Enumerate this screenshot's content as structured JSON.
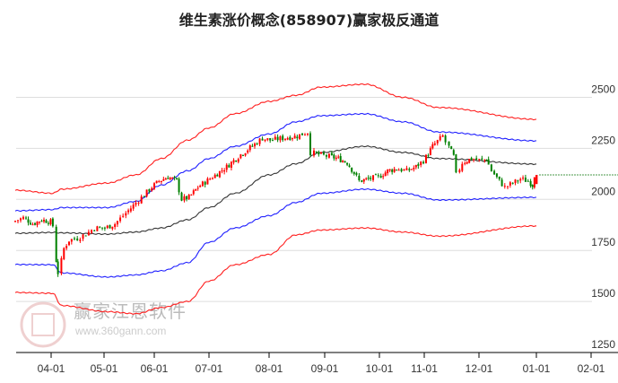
{
  "title": "维生素涨价概念(858907)赢家极反通道",
  "watermark": {
    "name": "赢家江恩软件",
    "url": "www.360gann.com"
  },
  "colors": {
    "up": "#ff0000",
    "down": "#008000",
    "outer_band": "#ff2020",
    "inner_band": "#2020ff",
    "mid_line": "#333333",
    "last_price_line": "#4a9a4a"
  },
  "chart_data": {
    "type": "candlestick",
    "title": "维生素涨价概念(858907)赢家极反通道",
    "ylim": [
      1250,
      2600
    ],
    "y_ticks": [
      1250,
      1500,
      1750,
      2000,
      2250,
      2500
    ],
    "y_axis_position": "right",
    "grid": true,
    "x_ticks": [
      "04-01",
      "05-01",
      "06-01",
      "07-01",
      "08-01",
      "09-01",
      "10-01",
      "11-01",
      "12-01",
      "01-01",
      "02-01"
    ],
    "last_price": 2120,
    "closes": [
      [
        "03-12",
        1890
      ],
      [
        "03-18",
        1910
      ],
      [
        "03-23",
        1880
      ],
      [
        "03-28",
        1900
      ],
      [
        "04-02",
        1890
      ],
      [
        "04-04",
        1870
      ],
      [
        "04-05",
        1700
      ],
      [
        "04-07",
        1640
      ],
      [
        "04-10",
        1760
      ],
      [
        "04-13",
        1800
      ],
      [
        "04-18",
        1810
      ],
      [
        "04-23",
        1830
      ],
      [
        "04-28",
        1860
      ],
      [
        "05-03",
        1860
      ],
      [
        "05-09",
        1880
      ],
      [
        "05-14",
        1920
      ],
      [
        "05-20",
        1970
      ],
      [
        "05-25",
        2010
      ],
      [
        "05-31",
        2060
      ],
      [
        "06-05",
        2090
      ],
      [
        "06-10",
        2110
      ],
      [
        "06-15",
        2090
      ],
      [
        "06-18",
        2000
      ],
      [
        "06-22",
        2010
      ],
      [
        "06-27",
        2060
      ],
      [
        "07-04",
        2110
      ],
      [
        "07-11",
        2160
      ],
      [
        "07-18",
        2220
      ],
      [
        "07-25",
        2270
      ],
      [
        "07-29",
        2300
      ],
      [
        "08-03",
        2290
      ],
      [
        "08-10",
        2300
      ],
      [
        "08-18",
        2310
      ],
      [
        "08-24",
        2330
      ],
      [
        "08-26",
        2230
      ],
      [
        "08-30",
        2220
      ],
      [
        "09-05",
        2210
      ],
      [
        "09-10",
        2200
      ],
      [
        "09-15",
        2180
      ],
      [
        "09-19",
        2130
      ],
      [
        "09-22",
        2090
      ],
      [
        "09-27",
        2100
      ],
      [
        "10-02",
        2110
      ],
      [
        "10-08",
        2140
      ],
      [
        "10-14",
        2150
      ],
      [
        "10-21",
        2140
      ],
      [
        "10-27",
        2160
      ],
      [
        "11-02",
        2190
      ],
      [
        "11-07",
        2260
      ],
      [
        "11-13",
        2310
      ],
      [
        "11-15",
        2280
      ],
      [
        "11-19",
        2210
      ],
      [
        "11-21",
        2120
      ],
      [
        "11-24",
        2180
      ],
      [
        "11-29",
        2200
      ],
      [
        "12-04",
        2190
      ],
      [
        "12-06",
        2200
      ],
      [
        "12-09",
        2140
      ],
      [
        "12-13",
        2090
      ],
      [
        "12-16",
        2060
      ],
      [
        "12-20",
        2080
      ],
      [
        "12-24",
        2100
      ],
      [
        "12-28",
        2090
      ],
      [
        "12-30",
        2070
      ],
      [
        "12-31",
        2120
      ]
    ],
    "bands": {
      "dates": [
        "03-12",
        "04-02",
        "04-07",
        "05-03",
        "05-20",
        "06-05",
        "06-20",
        "07-01",
        "07-14",
        "08-01",
        "08-16",
        "08-30",
        "09-24",
        "10-17",
        "11-09",
        "12-31"
      ],
      "outer_upper": [
        2045,
        2030,
        2050,
        2080,
        2120,
        2200,
        2290,
        2350,
        2420,
        2480,
        2510,
        2550,
        2564,
        2500,
        2450,
        2392
      ],
      "inner_upper": [
        1944,
        1950,
        1960,
        1960,
        1990,
        2070,
        2140,
        2200,
        2260,
        2320,
        2380,
        2410,
        2419,
        2380,
        2330,
        2287
      ],
      "middle": [
        1834,
        1838,
        1836,
        1830,
        1840,
        1860,
        1900,
        1960,
        2030,
        2120,
        2175,
        2230,
        2260,
        2230,
        2200,
        2173
      ],
      "inner_lower": [
        1681,
        1680,
        1640,
        1620,
        1630,
        1650,
        1690,
        1790,
        1860,
        1920,
        1985,
        2030,
        2050,
        2030,
        1997,
        2010
      ],
      "outer_lower": [
        1544,
        1540,
        1480,
        1450,
        1440,
        1470,
        1500,
        1600,
        1680,
        1730,
        1826,
        1850,
        1860,
        1840,
        1820,
        1870
      ]
    }
  }
}
